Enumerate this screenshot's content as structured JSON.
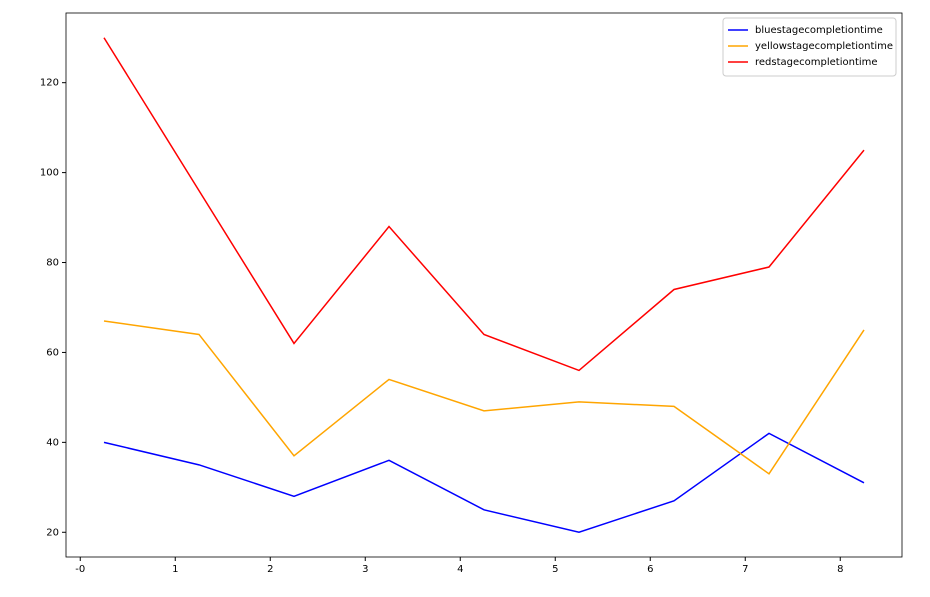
{
  "chart_data": {
    "type": "line",
    "x": [
      0.25,
      1.25,
      2.25,
      3.25,
      4.25,
      5.25,
      6.25,
      7.25,
      8.25
    ],
    "series": [
      {
        "name": "bluestagecompletiontime",
        "color": "blue",
        "values": [
          40,
          35,
          28,
          36,
          25,
          20,
          27,
          42,
          31
        ]
      },
      {
        "name": "yellowstagecompletiontime",
        "color": "orange",
        "values": [
          67,
          64,
          37,
          54,
          47,
          49,
          48,
          33,
          65
        ]
      },
      {
        "name": "redstagecompletiontime",
        "color": "red",
        "values": [
          130,
          96,
          62,
          88,
          64,
          56,
          74,
          79,
          105
        ]
      }
    ],
    "xlim": [
      -0.15,
      8.65
    ],
    "xticks": [
      {
        "value": 0,
        "label": "-0"
      },
      1,
      2,
      3,
      4,
      5,
      6,
      7,
      8
    ],
    "ylim": [
      14.5,
      135.5
    ],
    "yticks": [
      20,
      40,
      60,
      80,
      100,
      120
    ],
    "legend": "upper right"
  }
}
